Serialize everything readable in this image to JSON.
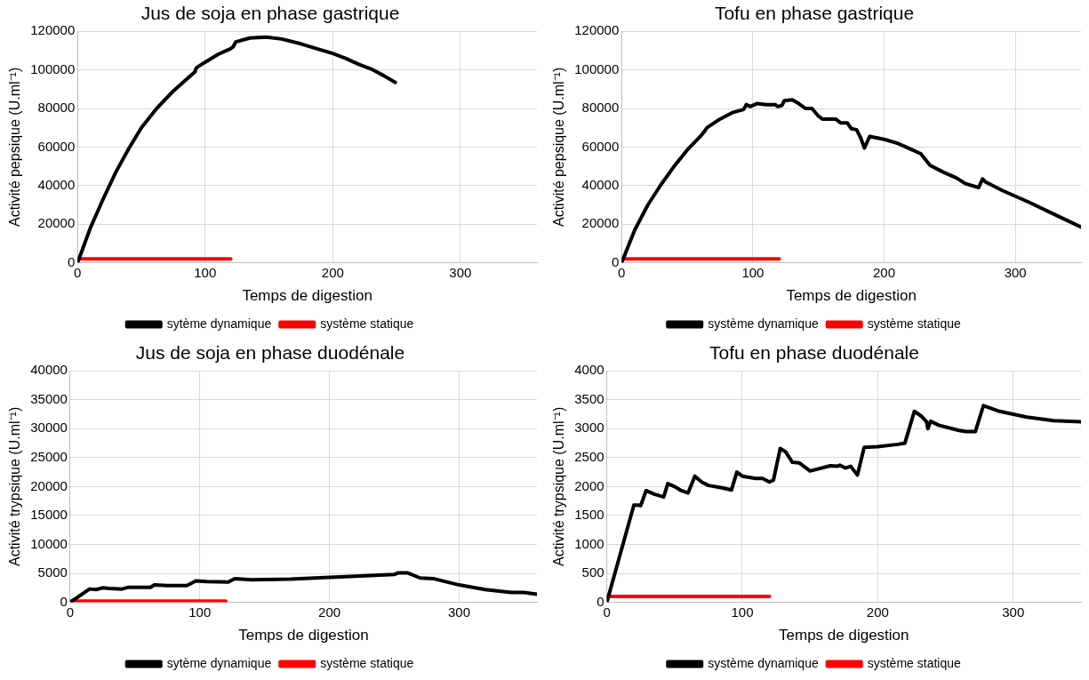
{
  "chart_data": [
    {
      "type": "line",
      "title": "Jus de soja en phase gastrique",
      "xlabel": "Temps de digestion",
      "ylabel": "Activité pepsique (U.ml⁻¹)",
      "xlim": [
        0,
        360
      ],
      "xticks": [
        0,
        100,
        200,
        300
      ],
      "ylim": [
        0,
        120000
      ],
      "yticks": [
        0,
        20000,
        40000,
        60000,
        80000,
        100000,
        120000
      ],
      "grid": true,
      "legend": "bottom",
      "series": [
        {
          "name": "sytème dynamique",
          "color": "#000000",
          "x": [
            0,
            10,
            20,
            30,
            40,
            50,
            62,
            75,
            92,
            93,
            100,
            110,
            120,
            122,
            124,
            135,
            148,
            160,
            175,
            190,
            200,
            210,
            220,
            230,
            240,
            249
          ],
          "values": [
            0,
            18000,
            33000,
            47000,
            59000,
            70000,
            80000,
            89000,
            99000,
            101000,
            104000,
            108000,
            111000,
            112000,
            114500,
            116500,
            117000,
            116000,
            113500,
            110500,
            108500,
            106000,
            103000,
            100500,
            97000,
            93500
          ]
        },
        {
          "name": "système statique",
          "color": "#ff0000",
          "x": [
            0,
            120
          ],
          "values": [
            2000,
            2000
          ]
        }
      ]
    },
    {
      "type": "line",
      "title": "Tofu en phase gastrique",
      "xlabel": "Temps de digestion",
      "ylabel": "Activité pepsique (U.ml⁻¹)",
      "xlim": [
        0,
        350
      ],
      "xticks": [
        0,
        100,
        200,
        300
      ],
      "ylim": [
        0,
        120000
      ],
      "yticks": [
        0,
        20000,
        40000,
        60000,
        80000,
        100000,
        120000
      ],
      "grid": true,
      "legend": "bottom",
      "series": [
        {
          "name": "système dynamique",
          "color": "#000000",
          "x": [
            0,
            10,
            20,
            30,
            40,
            50,
            60,
            63,
            65,
            75,
            85,
            93,
            95,
            98,
            103,
            110,
            117,
            119,
            122,
            124,
            130,
            135,
            140,
            145,
            150,
            153,
            163,
            167,
            172,
            175,
            179,
            182,
            185,
            189,
            200,
            210,
            220,
            228,
            235,
            245,
            255,
            262,
            272,
            275,
            277,
            290,
            310,
            330,
            350
          ],
          "values": [
            0,
            17000,
            30000,
            40500,
            50000,
            58500,
            65500,
            68000,
            70000,
            74500,
            78000,
            79500,
            82000,
            81000,
            82500,
            82000,
            82000,
            81000,
            81500,
            84000,
            84500,
            82500,
            80000,
            80000,
            76000,
            74500,
            74500,
            72500,
            72500,
            69500,
            69000,
            65000,
            59500,
            65500,
            64000,
            62000,
            59000,
            56500,
            50500,
            47000,
            44000,
            41000,
            39000,
            43500,
            42000,
            37500,
            31500,
            25000,
            18500
          ]
        },
        {
          "name": "système statique",
          "color": "#ff0000",
          "x": [
            0,
            120
          ],
          "values": [
            2000,
            2000
          ]
        }
      ]
    },
    {
      "type": "line",
      "title": "Jus de soja en phase duodénale",
      "xlabel": "Temps de digestion",
      "ylabel": "Activité trypsique (U.ml⁻¹)",
      "xlim": [
        0,
        360
      ],
      "xticks": [
        0,
        100,
        200,
        300
      ],
      "ylim": [
        0,
        40000
      ],
      "yticks": [
        0,
        5000,
        10000,
        15000,
        20000,
        25000,
        30000,
        35000,
        40000
      ],
      "grid": true,
      "legend": "bottom",
      "series": [
        {
          "name": "sytème dynamique",
          "color": "#000000",
          "x": [
            0,
            15,
            20,
            25,
            30,
            40,
            45,
            50,
            62,
            65,
            75,
            90,
            97,
            105,
            122,
            127,
            140,
            170,
            200,
            220,
            250,
            253,
            260,
            270,
            280,
            300,
            320,
            340,
            350,
            360
          ],
          "values": [
            0,
            2300,
            2200,
            2500,
            2400,
            2300,
            2600,
            2600,
            2600,
            3000,
            2900,
            2900,
            3700,
            3600,
            3500,
            4100,
            3900,
            4000,
            4300,
            4500,
            4800,
            5100,
            5100,
            4200,
            4100,
            3000,
            2200,
            1700,
            1700,
            1400
          ]
        },
        {
          "name": "système statique",
          "color": "#ff0000",
          "x": [
            0,
            120
          ],
          "values": [
            200,
            200
          ]
        }
      ]
    },
    {
      "type": "line",
      "title": "Tofu en phase duodénale",
      "xlabel": "Temps de digestion",
      "ylabel": "Activité trypsique (U.ml⁻¹)",
      "xlim": [
        0,
        350
      ],
      "xticks": [
        0,
        100,
        200,
        300
      ],
      "ylim": [
        0,
        4000
      ],
      "yticks": [
        0,
        500,
        1000,
        1500,
        2000,
        2500,
        3000,
        3500,
        4000
      ],
      "grid": true,
      "legend": "bottom",
      "series": [
        {
          "name": "système dynamique",
          "color": "#000000",
          "x": [
            0,
            20,
            23,
            25,
            29,
            35,
            42,
            45,
            50,
            55,
            60,
            65,
            70,
            75,
            85,
            92,
            96,
            100,
            110,
            115,
            120,
            123,
            128,
            132,
            137,
            142,
            150,
            165,
            170,
            172,
            176,
            180,
            185,
            190,
            200,
            215,
            220,
            227,
            232,
            236,
            237,
            239,
            245,
            260,
            265,
            272,
            278,
            290,
            310,
            330,
            350
          ],
          "values": [
            0,
            1680,
            1680,
            1670,
            1930,
            1870,
            1820,
            2050,
            2000,
            1930,
            1890,
            2180,
            2080,
            2020,
            1980,
            1940,
            2250,
            2180,
            2140,
            2140,
            2080,
            2110,
            2660,
            2600,
            2420,
            2410,
            2270,
            2360,
            2350,
            2370,
            2320,
            2350,
            2200,
            2680,
            2690,
            2730,
            2750,
            3300,
            3220,
            3120,
            3000,
            3130,
            3060,
            2970,
            2950,
            2950,
            3400,
            3300,
            3200,
            3140,
            3120
          ]
        },
        {
          "name": "système statique",
          "color": "#ff0000",
          "x": [
            0,
            120
          ],
          "values": [
            100,
            100
          ]
        }
      ]
    }
  ]
}
